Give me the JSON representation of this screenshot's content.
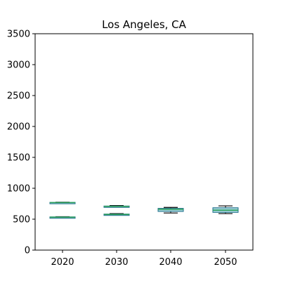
{
  "chart_data": {
    "type": "box",
    "title": "Los Angeles, CA",
    "xlabel": "",
    "ylabel": "",
    "ylim": [
      0,
      3500
    ],
    "yticks": [
      0,
      500,
      1000,
      1500,
      2000,
      2500,
      3000,
      3500
    ],
    "ytick_labels": [
      "0",
      "500",
      "1000",
      "1500",
      "2000",
      "2500",
      "3000",
      "3500"
    ],
    "grid": false,
    "categories": [
      "2020",
      "2030",
      "2040",
      "2050"
    ],
    "boxes": [
      {
        "category": "2020",
        "groups": [
          {
            "whisker_low": 760,
            "q1": 763,
            "median": 768,
            "q3": 772,
            "whisker_high": 775
          },
          {
            "whisker_low": 525,
            "q1": 528,
            "median": 533,
            "q3": 537,
            "whisker_high": 540
          }
        ]
      },
      {
        "category": "2030",
        "groups": [
          {
            "whisker_low": 695,
            "q1": 700,
            "median": 707,
            "q3": 713,
            "whisker_high": 720
          },
          {
            "whisker_low": 565,
            "q1": 570,
            "median": 577,
            "q3": 583,
            "whisker_high": 590
          }
        ]
      },
      {
        "category": "2040",
        "groups": [
          {
            "whisker_low": 600,
            "q1": 625,
            "median": 660,
            "q3": 675,
            "whisker_high": 690
          }
        ]
      },
      {
        "category": "2050",
        "groups": [
          {
            "whisker_low": 590,
            "q1": 610,
            "median": 645,
            "q3": 685,
            "whisker_high": 715
          }
        ]
      }
    ],
    "colors": {
      "box_face": "#9ed0d6",
      "box_edge": "#1f6f8b",
      "median": "#2ca05a",
      "whisker": "#000000",
      "axes": "#000000"
    }
  }
}
